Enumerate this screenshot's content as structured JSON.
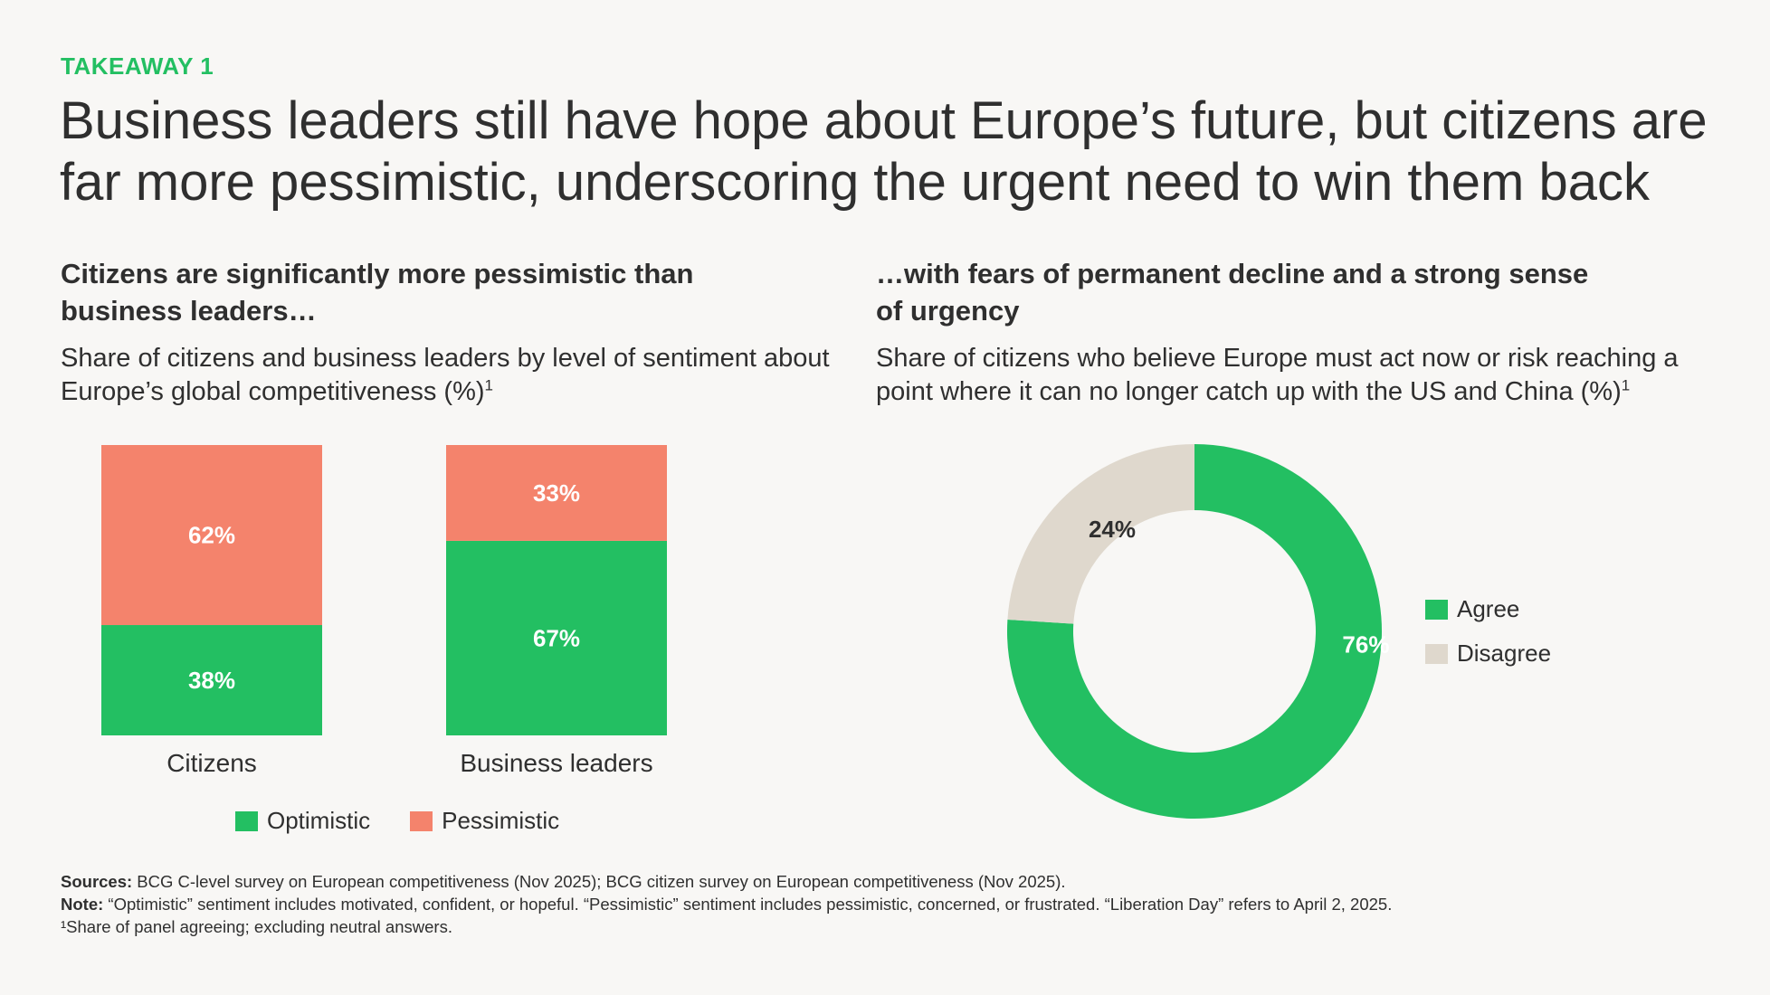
{
  "header": {
    "takeaway": "TAKEAWAY 1",
    "headline": "Business leaders still have hope about Europe’s future, but citizens are far more pessimistic, underscoring the urgent need to win them back"
  },
  "left_panel": {
    "title": "Citizens are significantly more pessimistic than business leaders…",
    "description": "Share of citizens and business leaders by level of sentiment about Europe’s global competitiveness (%)",
    "footnote_mark": "1"
  },
  "right_panel": {
    "title": "…with fears of permanent decline and a strong sense of urgency",
    "description": "Share of citizens who believe Europe must act now or risk reaching a point where it can no longer catch up with the US and China (%)",
    "footnote_mark": "1"
  },
  "colors": {
    "optimistic": "#23bf62",
    "pessimistic": "#f4836c",
    "agree": "#23bf62",
    "disagree": "#dfd8cd",
    "accent": "#23bf62"
  },
  "chart_data": [
    {
      "type": "bar",
      "stacked": true,
      "categories": [
        "Citizens",
        "Business leaders"
      ],
      "series": [
        {
          "name": "Optimistic",
          "values": [
            38,
            67
          ],
          "labels": [
            "38%",
            "67%"
          ]
        },
        {
          "name": "Pessimistic",
          "values": [
            62,
            33
          ],
          "labels": [
            "62%",
            "33%"
          ]
        }
      ],
      "ylim": [
        0,
        100
      ],
      "legend": [
        "Optimistic",
        "Pessimistic"
      ],
      "legend_position": "bottom"
    },
    {
      "type": "pie",
      "donut": true,
      "categories": [
        "Agree",
        "Disagree"
      ],
      "values": [
        76,
        24
      ],
      "labels": [
        "76%",
        "24%"
      ],
      "legend": [
        "Agree",
        "Disagree"
      ],
      "legend_position": "right"
    }
  ],
  "footnotes": {
    "sources_label": "Sources:",
    "sources_text": " BCG C-level survey on European competitiveness (Nov 2025); BCG citizen survey on European competitiveness (Nov 2025).",
    "note_label": "Note:",
    "note_text": " “Optimistic” sentiment includes motivated, confident, or hopeful. “Pessimistic” sentiment includes pessimistic, concerned, or frustrated. “Liberation Day” refers to April 2, 2025.",
    "footnote_1": "¹Share of panel agreeing; excluding neutral answers."
  }
}
